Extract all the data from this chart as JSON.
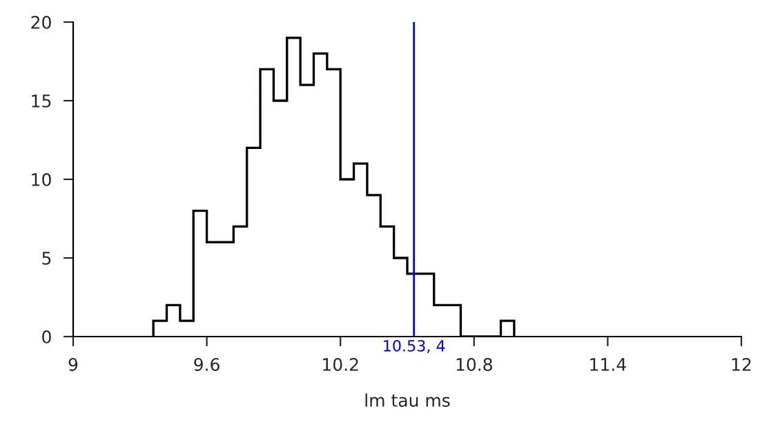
{
  "chart_data": {
    "type": "histogram",
    "xlabel": "lm tau ms",
    "bins": [
      9.36,
      9.42,
      9.48,
      9.54,
      9.6,
      9.66,
      9.72,
      9.78,
      9.84,
      9.9,
      9.96,
      10.02,
      10.08,
      10.14,
      10.2,
      10.26,
      10.32,
      10.38,
      10.44,
      10.5,
      10.56,
      10.62,
      10.68,
      10.74,
      10.8,
      10.86,
      10.92,
      10.98
    ],
    "values": [
      1,
      2,
      1,
      8,
      6,
      6,
      7,
      12,
      17,
      15,
      19,
      16,
      18,
      17,
      10,
      11,
      9,
      7,
      5,
      4,
      4,
      2,
      2,
      0,
      0,
      0,
      1
    ],
    "color": "#000000",
    "xlim": [
      9,
      12
    ],
    "xticks": [
      9,
      9.6,
      10.2,
      10.8,
      11.4,
      12
    ],
    "ylim": [
      0,
      20
    ],
    "yticks": [
      0,
      5,
      10,
      15,
      20
    ],
    "ref_lines": [
      {
        "axis": "x",
        "value": 10.53,
        "label": "10.53, 4",
        "color": "#0000ff"
      }
    ],
    "grid": false,
    "legend": false
  }
}
